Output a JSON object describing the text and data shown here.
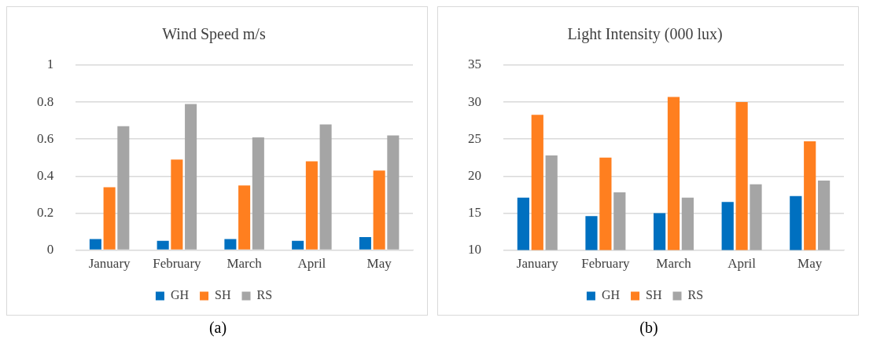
{
  "chart_data": [
    {
      "type": "bar",
      "title": "Wind Speed m/s",
      "categories": [
        "January",
        "February",
        "March",
        "April",
        "May"
      ],
      "series": [
        {
          "name": "GH",
          "color": "#0070c0",
          "values": [
            0.06,
            0.05,
            0.06,
            0.05,
            0.07
          ]
        },
        {
          "name": "SH",
          "color": "#ff7f1f",
          "values": [
            0.34,
            0.49,
            0.35,
            0.48,
            0.43
          ]
        },
        {
          "name": "RS",
          "color": "#a5a5a5",
          "values": [
            0.67,
            0.79,
            0.61,
            0.68,
            0.62
          ]
        }
      ],
      "ylim": [
        0,
        1
      ],
      "yticks": [
        0,
        0.2,
        0.4,
        0.6,
        0.8,
        1
      ],
      "grid": "y",
      "legend": "bottom",
      "annotations": [
        "(a)"
      ]
    },
    {
      "type": "bar",
      "title": "Light Intensity (000 lux)",
      "categories": [
        "January",
        "February",
        "March",
        "April",
        "May"
      ],
      "series": [
        {
          "name": "GH",
          "color": "#0070c0",
          "values": [
            17.1,
            14.6,
            15.0,
            16.5,
            17.3
          ]
        },
        {
          "name": "SH",
          "color": "#ff7f1f",
          "values": [
            28.3,
            22.5,
            30.7,
            30.0,
            24.7
          ]
        },
        {
          "name": "RS",
          "color": "#a5a5a5",
          "values": [
            22.8,
            17.8,
            17.1,
            18.9,
            19.4
          ]
        }
      ],
      "ylim": [
        10,
        35
      ],
      "yticks": [
        10,
        15,
        20,
        25,
        30,
        35
      ],
      "grid": "y",
      "legend": "bottom",
      "annotations": [
        "(b)"
      ]
    }
  ]
}
